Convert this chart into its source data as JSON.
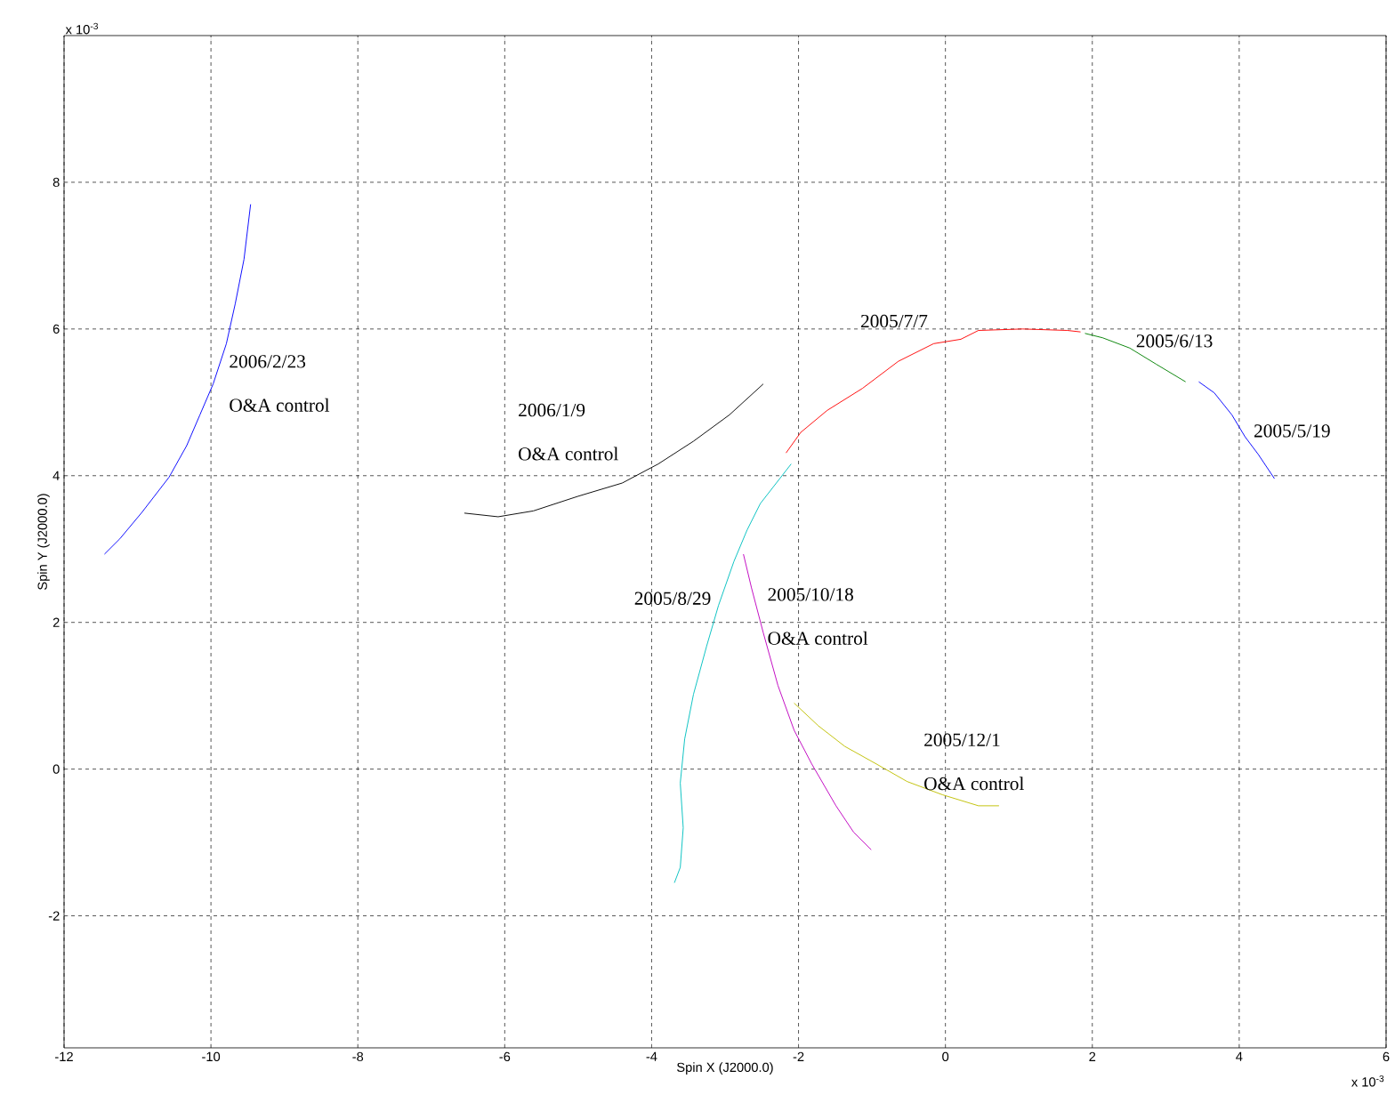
{
  "chart_data": {
    "type": "line",
    "xlabel": "Spin X (J2000.0)",
    "ylabel": "Spin Y (J2000.0)",
    "xlim": [
      -12,
      6
    ],
    "ylim": [
      -3.8,
      10
    ],
    "xticks": [
      -12,
      -10,
      -8,
      -6,
      -4,
      -2,
      0,
      2,
      4,
      6
    ],
    "yticks": [
      -2,
      0,
      2,
      4,
      6,
      8
    ],
    "grid": true,
    "series": [
      {
        "name": "2005/5/19",
        "color": "#0000ff",
        "x": [
          3.45,
          3.66,
          3.9,
          4.08,
          4.26,
          4.48
        ],
        "values": [
          5.28,
          5.13,
          4.83,
          4.53,
          4.29,
          3.96
        ]
      },
      {
        "name": "2005/6/13",
        "color": "#008000",
        "x": [
          1.9,
          2.14,
          2.51,
          2.87,
          3.27
        ],
        "values": [
          5.94,
          5.88,
          5.74,
          5.52,
          5.28
        ]
      },
      {
        "name": "2005/7/7",
        "color": "#ff0000",
        "x": [
          -2.17,
          -1.97,
          -1.61,
          -1.13,
          -0.64,
          -0.16,
          0.21,
          0.45,
          1.05,
          1.66,
          1.84
        ],
        "values": [
          4.31,
          4.59,
          4.89,
          5.19,
          5.56,
          5.8,
          5.86,
          5.98,
          6.0,
          5.98,
          5.96
        ]
      },
      {
        "name": "2005/8/29",
        "color": "#00bfbf",
        "x": [
          -2.1,
          -2.52,
          -2.7,
          -2.88,
          -3.09,
          -3.25,
          -3.43,
          -3.55,
          -3.61,
          -3.57,
          -3.61,
          -3.69
        ],
        "values": [
          4.16,
          3.62,
          3.26,
          2.83,
          2.23,
          1.68,
          1.02,
          0.41,
          -0.19,
          -0.8,
          -1.34,
          -1.55
        ]
      },
      {
        "name": "2005/10/18",
        "color": "#bf00bf",
        "x": [
          -2.75,
          -2.64,
          -2.48,
          -2.28,
          -2.06,
          -1.82,
          -1.49,
          -1.25,
          -1.01
        ],
        "values": [
          2.93,
          2.47,
          1.86,
          1.14,
          0.53,
          0.07,
          -0.5,
          -0.86,
          -1.1
        ]
      },
      {
        "name": "2005/12/1",
        "color": "#bfbf00",
        "x": [
          -2.06,
          -1.73,
          -1.37,
          -0.94,
          -0.52,
          -0.04,
          0.45,
          0.73
        ],
        "values": [
          0.9,
          0.59,
          0.31,
          0.07,
          -0.17,
          -0.35,
          -0.5,
          -0.5
        ]
      },
      {
        "color": "#000000",
        "x": [
          -6.55,
          -6.09,
          -5.61,
          -5.0,
          -4.4,
          -3.91,
          -3.43,
          -2.94,
          -2.48
        ],
        "values": [
          3.49,
          3.44,
          3.52,
          3.72,
          3.9,
          4.16,
          4.47,
          4.83,
          5.25
        ]
      },
      {
        "name": "2006/2/23",
        "color": "#0000ff",
        "x": [
          -11.45,
          -11.24,
          -10.94,
          -10.57,
          -10.33,
          -10.15,
          -9.97,
          -9.79,
          -9.67,
          -9.55,
          -9.46
        ],
        "values": [
          2.93,
          3.14,
          3.5,
          3.98,
          4.41,
          4.83,
          5.25,
          5.8,
          6.34,
          6.95,
          7.7
        ]
      }
    ],
    "annotations": [
      "x 10$^{-3}$",
      "x 10$^{-3}$",
      "2006/1/9",
      "O&A control",
      "O&A control",
      "O&A control",
      "O&A control"
    ]
  }
}
